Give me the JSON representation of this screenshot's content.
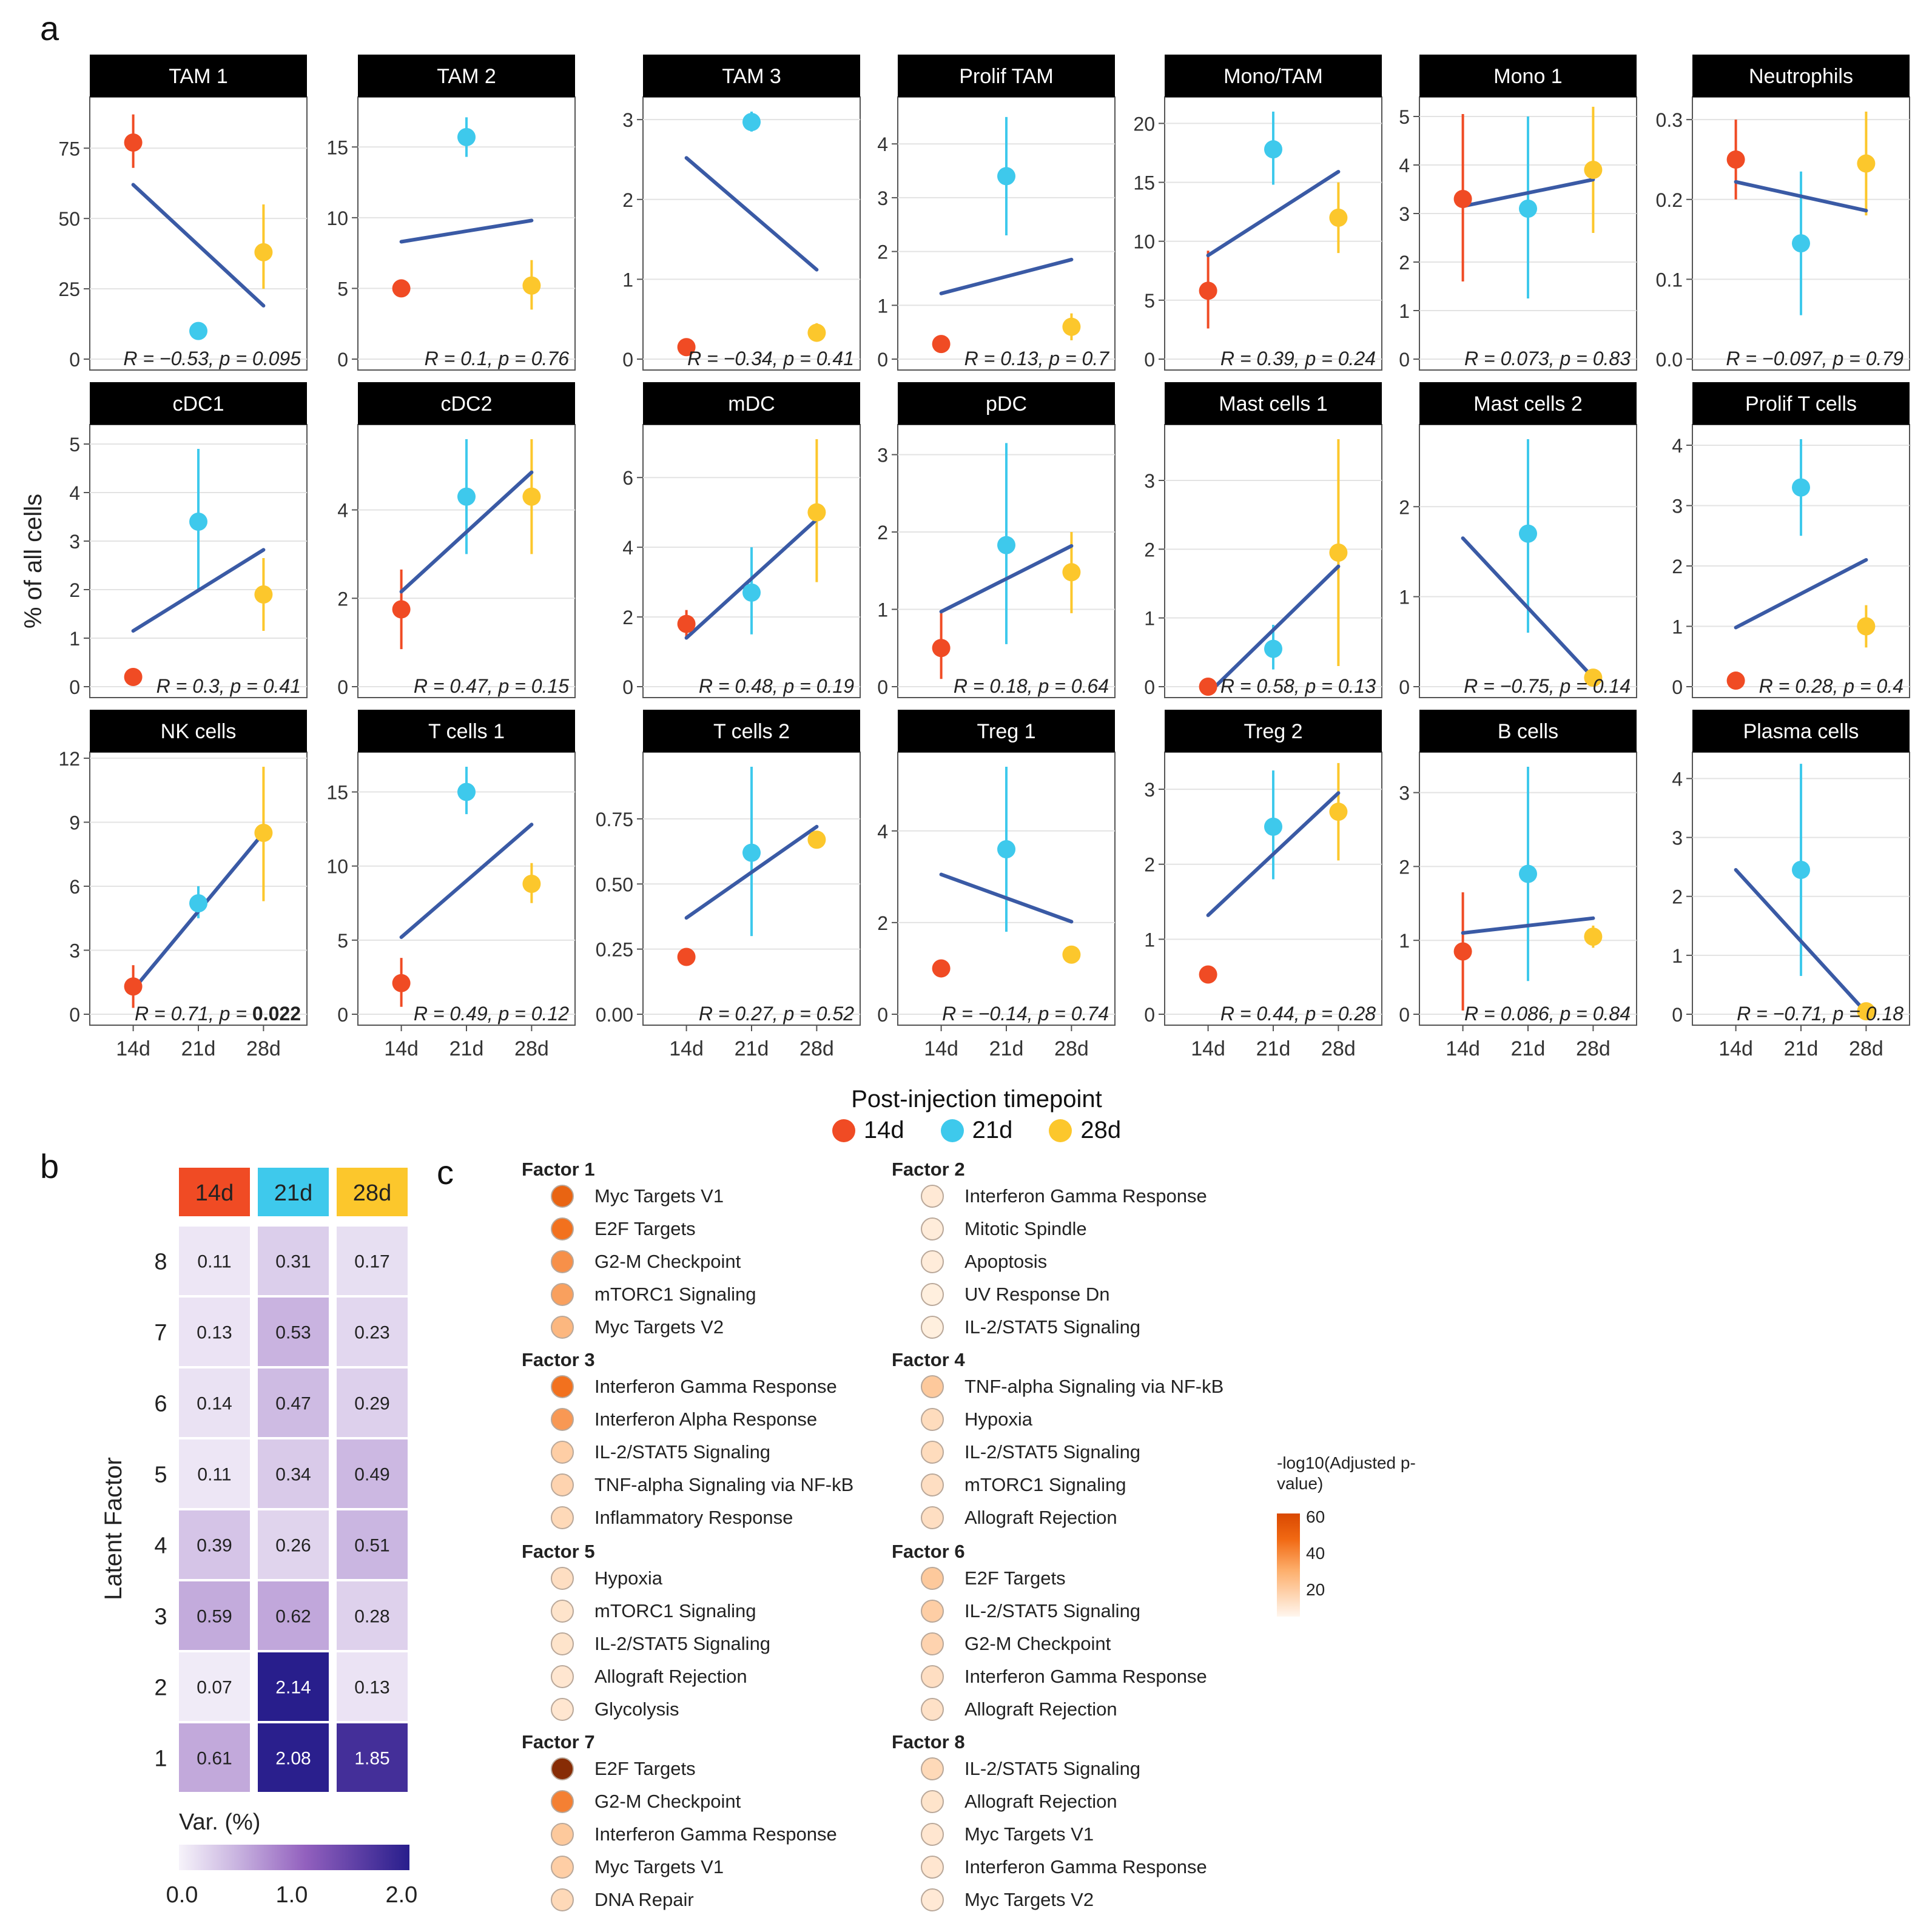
{
  "panel_labels": {
    "a": "a",
    "b": "b",
    "c": "c"
  },
  "colors": {
    "t14": "#f04b24",
    "t21": "#3ec9ec",
    "t28": "#fcc72c",
    "fit": "#3a5aa5",
    "header_bg": "#000000"
  },
  "chart_data": [
    {
      "type": "scatter",
      "panel": "a",
      "ylabel": "% of all cells",
      "x_categories": [
        "14d",
        "21d",
        "28d"
      ],
      "legend": {
        "title": "Post-injection timepoint",
        "items": [
          "14d",
          "21d",
          "28d"
        ],
        "placement": "bottom-center"
      },
      "facets": [
        {
          "title": "TAM 1",
          "ylim": [
            0,
            88
          ],
          "yticks": [
            0,
            25,
            50,
            75
          ],
          "points": [
            [
              77,
              68,
              87
            ],
            [
              10,
              null,
              null
            ],
            [
              38,
              25,
              55
            ]
          ],
          "fit": [
            62,
            19
          ],
          "r": "R = −0.53, p = 0.095"
        },
        {
          "title": "TAM 2",
          "ylim": [
            0,
            17.5
          ],
          "yticks": [
            0,
            5,
            10,
            15
          ],
          "points": [
            [
              5,
              null,
              null
            ],
            [
              15.7,
              14.3,
              17.1
            ],
            [
              5.2,
              3.5,
              7
            ]
          ],
          "fit": [
            8.3,
            9.8
          ],
          "r": "R = 0.1, p = 0.76"
        },
        {
          "title": "TAM 3",
          "ylim": [
            0,
            3.1
          ],
          "yticks": [
            0,
            1,
            2,
            3
          ],
          "points": [
            [
              0.15,
              null,
              null
            ],
            [
              2.97,
              2.85,
              3.1
            ],
            [
              0.33,
              0.22,
              0.45
            ]
          ],
          "fit": [
            2.52,
            1.12
          ],
          "r": "R = −0.34, p = 0.41"
        },
        {
          "title": "Prolif TAM",
          "ylim": [
            0,
            4.6
          ],
          "yticks": [
            0,
            1,
            2,
            3,
            4
          ],
          "points": [
            [
              0.28,
              null,
              null
            ],
            [
              3.4,
              2.3,
              4.5
            ],
            [
              0.6,
              0.35,
              0.85
            ]
          ],
          "fit": [
            1.22,
            1.85
          ],
          "r": "R = 0.13, p = 0.7"
        },
        {
          "title": "Mono/TAM",
          "ylim": [
            0,
            21
          ],
          "yticks": [
            0,
            5,
            10,
            15,
            20
          ],
          "points": [
            [
              5.8,
              2.6,
              9.2
            ],
            [
              17.8,
              14.8,
              21
            ],
            [
              12,
              9,
              15
            ]
          ],
          "fit": [
            8.8,
            15.9
          ],
          "r": "R = 0.39, p = 0.24"
        },
        {
          "title": "Mono 1",
          "ylim": [
            0,
            5.1
          ],
          "yticks": [
            0,
            1,
            2,
            3,
            4,
            5
          ],
          "points": [
            [
              3.3,
              1.6,
              5.05
            ],
            [
              3.1,
              1.25,
              5
            ],
            [
              3.9,
              2.6,
              5.2
            ]
          ],
          "fit": [
            3.15,
            3.7
          ],
          "r": "R = 0.073, p = 0.83"
        },
        {
          "title": "Neutrophils",
          "ylim": [
            0,
            0.31
          ],
          "yticks": [
            0,
            0.1,
            0.2,
            0.3
          ],
          "ytickLabels": [
            "0.0",
            "0.1",
            "0.2",
            "0.3"
          ],
          "points": [
            [
              0.25,
              0.2,
              0.3
            ],
            [
              0.145,
              0.055,
              0.235
            ],
            [
              0.245,
              0.18,
              0.31
            ]
          ],
          "fit": [
            0.222,
            0.186
          ],
          "r": "R = −0.097, p = 0.79"
        },
        {
          "title": "cDC1",
          "ylim": [
            0,
            5.1
          ],
          "yticks": [
            0,
            1,
            2,
            3,
            4,
            5
          ],
          "points": [
            [
              0.2,
              null,
              null
            ],
            [
              3.4,
              2,
              4.9
            ],
            [
              1.9,
              1.15,
              2.65
            ]
          ],
          "fit": [
            1.15,
            2.82
          ],
          "r": "R = 0.3, p = 0.41"
        },
        {
          "title": "cDC2",
          "ylim": [
            0,
            5.6
          ],
          "yticks": [
            0,
            2,
            4
          ],
          "points": [
            [
              1.75,
              0.85,
              2.65
            ],
            [
              4.3,
              3,
              5.6
            ],
            [
              4.3,
              3,
              5.6
            ]
          ],
          "fit": [
            2.15,
            4.85
          ],
          "r": "R = 0.47, p = 0.15"
        },
        {
          "title": "mDC",
          "ylim": [
            0,
            7.1
          ],
          "yticks": [
            0,
            2,
            4,
            6
          ],
          "points": [
            [
              1.8,
              1.4,
              2.2
            ],
            [
              2.7,
              1.5,
              4
            ],
            [
              5,
              3,
              7.1
            ]
          ],
          "fit": [
            1.4,
            4.8
          ],
          "r": "R = 0.48, p = 0.19"
        },
        {
          "title": "pDC",
          "ylim": [
            0,
            3.2
          ],
          "yticks": [
            0,
            1,
            2,
            3
          ],
          "points": [
            [
              0.5,
              0.1,
              0.95
            ],
            [
              1.83,
              0.55,
              3.15
            ],
            [
              1.48,
              0.95,
              2
            ]
          ],
          "fit": [
            0.97,
            1.82
          ],
          "r": "R = 0.18, p = 0.64"
        },
        {
          "title": "Mast cells 1",
          "ylim": [
            0,
            3.6
          ],
          "yticks": [
            0,
            1,
            2,
            3
          ],
          "points": [
            [
              0,
              null,
              null
            ],
            [
              0.55,
              0.25,
              0.9
            ],
            [
              1.95,
              0.3,
              3.6
            ]
          ],
          "fit": [
            -0.1,
            1.75
          ],
          "r": "R = 0.58, p = 0.13"
        },
        {
          "title": "Mast cells 2",
          "ylim": [
            0,
            2.75
          ],
          "yticks": [
            0,
            1,
            2
          ],
          "points": [
            [
              null,
              null,
              null
            ],
            [
              1.7,
              0.6,
              2.75
            ],
            [
              0.1,
              null,
              null
            ]
          ],
          "fit": [
            1.65,
            0.1
          ],
          "r": "R = −0.75, p = 0.14"
        },
        {
          "title": "Prolif T cells",
          "ylim": [
            0,
            4.1
          ],
          "yticks": [
            0,
            1,
            2,
            3,
            4
          ],
          "points": [
            [
              0.1,
              null,
              null
            ],
            [
              3.3,
              2.5,
              4.1
            ],
            [
              1,
              0.65,
              1.35
            ]
          ],
          "fit": [
            0.98,
            2.1
          ],
          "r": "R = 0.28, p = 0.4"
        },
        {
          "title": "NK cells",
          "ylim": [
            0,
            11.6
          ],
          "yticks": [
            0,
            3,
            6,
            9,
            12
          ],
          "points": [
            [
              1.3,
              0.3,
              2.3
            ],
            [
              5.2,
              4.5,
              6
            ],
            [
              8.5,
              5.3,
              11.6
            ]
          ],
          "fit": [
            1.15,
            8.5
          ],
          "r": "R = 0.71, p = 0.022",
          "p_bold": true
        },
        {
          "title": "T cells 1",
          "ylim": [
            0,
            16.7
          ],
          "yticks": [
            0,
            5,
            10,
            15
          ],
          "points": [
            [
              2.1,
              0.5,
              3.8
            ],
            [
              15,
              13.5,
              16.7
            ],
            [
              8.8,
              7.5,
              10.2
            ]
          ],
          "fit": [
            5.2,
            12.8
          ],
          "r": "R = 0.49, p = 0.12"
        },
        {
          "title": "T cells 2",
          "ylim": [
            0,
            0.95
          ],
          "yticks": [
            0,
            0.25,
            0.5,
            0.75
          ],
          "ytickLabels": [
            "0.00",
            "0.25",
            "0.50",
            "0.75"
          ],
          "points": [
            [
              0.22,
              null,
              null
            ],
            [
              0.62,
              0.3,
              0.95
            ],
            [
              0.67,
              null,
              null
            ]
          ],
          "fit": [
            0.37,
            0.72
          ],
          "r": "R = 0.27, p = 0.52"
        },
        {
          "title": "Treg 1",
          "ylim": [
            0,
            5.4
          ],
          "yticks": [
            0,
            2,
            4
          ],
          "points": [
            [
              1,
              null,
              null
            ],
            [
              3.6,
              1.8,
              5.4
            ],
            [
              1.3,
              null,
              null
            ]
          ],
          "fit": [
            3.05,
            2.02
          ],
          "r": "R = −0.14, p = 0.74"
        },
        {
          "title": "Treg 2",
          "ylim": [
            0,
            3.3
          ],
          "yticks": [
            0,
            1,
            2,
            3
          ],
          "points": [
            [
              0.53,
              null,
              null
            ],
            [
              2.5,
              1.8,
              3.25
            ],
            [
              2.7,
              2.05,
              3.35
            ]
          ],
          "fit": [
            1.32,
            2.95
          ],
          "r": "R = 0.44, p = 0.28"
        },
        {
          "title": "B cells",
          "ylim": [
            0,
            3.35
          ],
          "yticks": [
            0,
            1,
            2,
            3
          ],
          "points": [
            [
              0.85,
              0.05,
              1.65
            ],
            [
              1.9,
              0.45,
              3.35
            ],
            [
              1.05,
              0.9,
              1.2
            ]
          ],
          "fit": [
            1.1,
            1.3
          ],
          "r": "R = 0.086, p = 0.84"
        },
        {
          "title": "Plasma cells",
          "ylim": [
            0,
            4.2
          ],
          "yticks": [
            0,
            1,
            2,
            3,
            4
          ],
          "points": [
            [
              null,
              null,
              null
            ],
            [
              2.45,
              0.65,
              4.25
            ],
            [
              0.05,
              null,
              null
            ]
          ],
          "fit": [
            2.45,
            0.03
          ],
          "r": "R = −0.71, p = 0.18"
        }
      ]
    },
    {
      "type": "heatmap",
      "panel": "b",
      "ylabel": "Latent Factor",
      "columns": [
        "14d",
        "21d",
        "28d"
      ],
      "rows": [
        "8",
        "7",
        "6",
        "5",
        "4",
        "3",
        "2",
        "1"
      ],
      "values": [
        [
          0.11,
          0.31,
          0.17
        ],
        [
          0.13,
          0.53,
          0.23
        ],
        [
          0.14,
          0.47,
          0.29
        ],
        [
          0.11,
          0.34,
          0.49
        ],
        [
          0.39,
          0.26,
          0.51
        ],
        [
          0.59,
          0.62,
          0.28
        ],
        [
          0.07,
          2.14,
          0.13
        ],
        [
          0.61,
          2.08,
          1.85
        ]
      ],
      "legend": {
        "title": "Var. (%)",
        "ticks": [
          "0.0",
          "1.0",
          "2.0"
        ],
        "range": [
          0,
          2.1
        ]
      }
    },
    {
      "type": "table",
      "panel": "c",
      "legend": {
        "title": "-log10(Adjusted p-value)",
        "ticks": [
          "60",
          "40",
          "20"
        ],
        "range": [
          0,
          70
        ]
      },
      "factors": [
        {
          "name": "Factor 1",
          "terms": [
            [
              "Myc Targets V1",
              44
            ],
            [
              "E2F Targets",
              40
            ],
            [
              "G2-M Checkpoint",
              32
            ],
            [
              "mTORC1 Signaling",
              28
            ],
            [
              "Myc Targets V2",
              22
            ]
          ]
        },
        {
          "name": "Factor 2",
          "terms": [
            [
              "Interferon Gamma Response",
              4
            ],
            [
              "Mitotic Spindle",
              3
            ],
            [
              "Apoptosis",
              3
            ],
            [
              "UV Response Dn",
              2
            ],
            [
              "IL-2/STAT5 Signaling",
              2
            ]
          ]
        },
        {
          "name": "Factor 3",
          "terms": [
            [
              "Interferon Gamma Response",
              40
            ],
            [
              "Interferon Alpha Response",
              30
            ],
            [
              "IL-2/STAT5 Signaling",
              14
            ],
            [
              "TNF-alpha Signaling via NF-kB",
              12
            ],
            [
              "Inflammatory Response",
              10
            ]
          ]
        },
        {
          "name": "Factor 4",
          "terms": [
            [
              "TNF-alpha Signaling via NF-kB",
              16
            ],
            [
              "Hypoxia",
              9
            ],
            [
              "IL-2/STAT5 Signaling",
              9
            ],
            [
              "mTORC1 Signaling",
              8
            ],
            [
              "Allograft Rejection",
              8
            ]
          ]
        },
        {
          "name": "Factor 5",
          "terms": [
            [
              "Hypoxia",
              8
            ],
            [
              "mTORC1 Signaling",
              6
            ],
            [
              "IL-2/STAT5 Signaling",
              6
            ],
            [
              "Allograft Rejection",
              5
            ],
            [
              "Glycolysis",
              5
            ]
          ]
        },
        {
          "name": "Factor 6",
          "terms": [
            [
              "E2F Targets",
              16
            ],
            [
              "IL-2/STAT5 Signaling",
              14
            ],
            [
              "G2-M Checkpoint",
              12
            ],
            [
              "Interferon Gamma Response",
              8
            ],
            [
              "Allograft Rejection",
              7
            ]
          ]
        },
        {
          "name": "Factor 7",
          "terms": [
            [
              "E2F Targets",
              68
            ],
            [
              "G2-M Checkpoint",
              36
            ],
            [
              "Interferon Gamma Response",
              16
            ],
            [
              "Myc Targets V1",
              14
            ],
            [
              "DNA Repair",
              10
            ]
          ]
        },
        {
          "name": "Factor 8",
          "terms": [
            [
              "IL-2/STAT5 Signaling",
              10
            ],
            [
              "Allograft Rejection",
              6
            ],
            [
              "Myc Targets V1",
              5
            ],
            [
              "Interferon Gamma Response",
              5
            ],
            [
              "Myc Targets V2",
              4
            ]
          ]
        }
      ]
    }
  ]
}
